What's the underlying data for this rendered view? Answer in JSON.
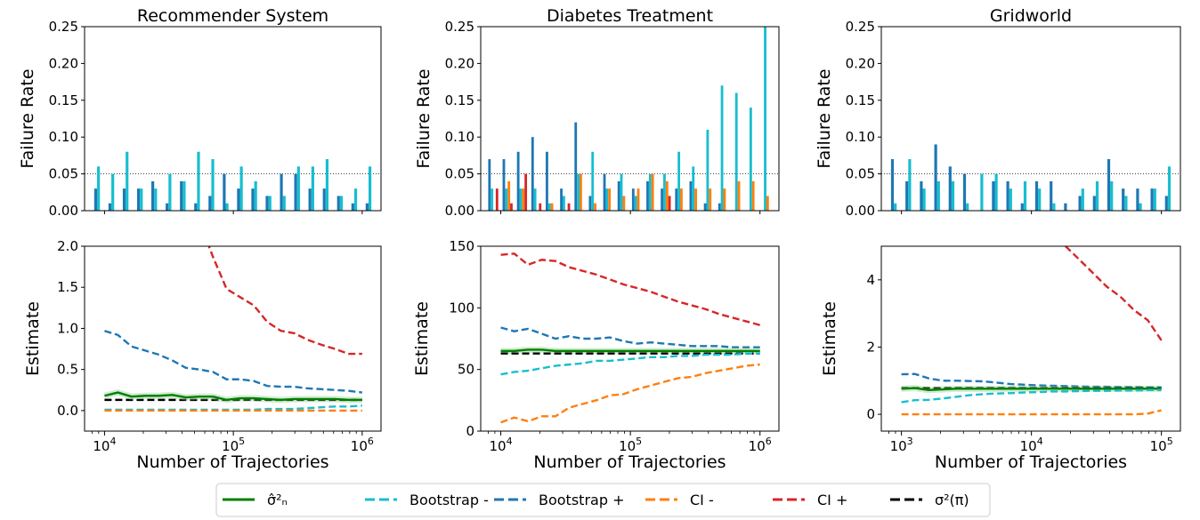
{
  "colors": {
    "sigma_hat": "#008000",
    "bootstrap_minus": "#17becf",
    "bootstrap_plus": "#1f77b4",
    "ci_minus": "#ff7f0e",
    "ci_plus": "#d62728",
    "sigma_true": "#000000"
  },
  "legend": {
    "placement": "bottom-center",
    "items": [
      {
        "key": "sigma_hat",
        "label": "σ̂²ₙ",
        "dash": false
      },
      {
        "key": "bootstrap_minus",
        "label": "Bootstrap -",
        "dash": true
      },
      {
        "key": "bootstrap_plus",
        "label": "Bootstrap +",
        "dash": true
      },
      {
        "key": "ci_minus",
        "label": "CI -",
        "dash": true
      },
      {
        "key": "ci_plus",
        "label": "CI +",
        "dash": true
      },
      {
        "key": "sigma_true",
        "label": "σ²(π)",
        "dash": true
      }
    ]
  },
  "chart_data": [
    {
      "type": "bar",
      "title": "Recommender System",
      "ylabel": "Failure Rate",
      "ylim": [
        0,
        0.25
      ],
      "yticks": [
        "0.00",
        "0.05",
        "0.10",
        "0.15",
        "0.20",
        "0.25"
      ],
      "reference_line": 0.05,
      "series": [
        {
          "key": "bootstrap_plus",
          "values": [
            0.03,
            0.01,
            0.03,
            0.03,
            0.04,
            0.01,
            0.04,
            0.01,
            0.02,
            0.05,
            0.03,
            0.03,
            0.02,
            0.05,
            0.05,
            0.03,
            0.03,
            0.02,
            0.01,
            0.01
          ]
        },
        {
          "key": "bootstrap_minus",
          "values": [
            0.06,
            0.05,
            0.08,
            0.03,
            0.03,
            0.05,
            0.04,
            0.08,
            0.07,
            0.01,
            0.06,
            0.04,
            0.02,
            0.02,
            0.06,
            0.06,
            0.07,
            0.02,
            0.03,
            0.06
          ]
        }
      ]
    },
    {
      "type": "bar",
      "title": "Diabetes Treatment",
      "ylabel": "Failure Rate",
      "ylim": [
        0,
        0.25
      ],
      "yticks": [
        "0.00",
        "0.05",
        "0.10",
        "0.15",
        "0.20",
        "0.25"
      ],
      "reference_line": 0.05,
      "series": [
        {
          "key": "bootstrap_plus",
          "values": [
            0.07,
            0.07,
            0.08,
            0.1,
            0.08,
            0.03,
            0.12,
            0.02,
            0.05,
            0.04,
            0.03,
            0.04,
            0.03,
            0.03,
            0.04,
            0.01,
            0.01,
            0.0,
            0.0,
            0.0
          ]
        },
        {
          "key": "bootstrap_minus",
          "values": [
            0.03,
            0.03,
            0.03,
            0.03,
            0.01,
            0.02,
            0.05,
            0.08,
            0.03,
            0.05,
            0.02,
            0.05,
            0.05,
            0.08,
            0.06,
            0.11,
            0.17,
            0.16,
            0.14,
            0.25
          ]
        },
        {
          "key": "ci_minus",
          "values": [
            0.0,
            0.04,
            0.03,
            0.0,
            0.01,
            0.0,
            0.05,
            0.01,
            0.03,
            0.02,
            0.03,
            0.05,
            0.04,
            0.03,
            0.03,
            0.03,
            0.03,
            0.04,
            0.04,
            0.02
          ]
        },
        {
          "key": "ci_plus",
          "values": [
            0.03,
            0.01,
            0.05,
            0.01,
            0.0,
            0.01,
            0.0,
            0.0,
            0.0,
            0.0,
            0.0,
            0.0,
            0.02,
            0.0,
            0.0,
            0.0,
            0.0,
            0.0,
            0.0,
            0.0
          ]
        }
      ]
    },
    {
      "type": "bar",
      "title": "Gridworld",
      "ylabel": "Failure Rate",
      "ylim": [
        0,
        0.25
      ],
      "yticks": [
        "0.00",
        "0.05",
        "0.10",
        "0.15",
        "0.20",
        "0.25"
      ],
      "reference_line": 0.05,
      "series": [
        {
          "key": "bootstrap_plus",
          "values": [
            0.07,
            0.04,
            0.04,
            0.09,
            0.06,
            0.05,
            0.0,
            0.04,
            0.04,
            0.01,
            0.04,
            0.04,
            0.01,
            0.02,
            0.02,
            0.07,
            0.03,
            0.03,
            0.03,
            0.02
          ]
        },
        {
          "key": "bootstrap_minus",
          "values": [
            0.01,
            0.07,
            0.03,
            0.04,
            0.04,
            0.01,
            0.05,
            0.05,
            0.03,
            0.04,
            0.03,
            0.01,
            0.0,
            0.03,
            0.04,
            0.04,
            0.02,
            0.01,
            0.03,
            0.06
          ]
        }
      ]
    },
    {
      "type": "line",
      "xlabel": "Number of Trajectories",
      "ylabel": "Estimate",
      "xscale": "log",
      "xlim": [
        7000,
        1400000
      ],
      "ylim": [
        -0.25,
        2.0
      ],
      "xticks": [
        {
          "v": 10000,
          "b": "10",
          "e": "4"
        },
        {
          "v": 100000,
          "b": "10",
          "e": "5"
        },
        {
          "v": 1000000,
          "b": "10",
          "e": "6"
        }
      ],
      "yticks": [
        "0.0",
        "0.5",
        "1.0",
        "1.5",
        "2.0"
      ],
      "x": [
        10000,
        12700,
        16200,
        20700,
        26400,
        33600,
        42800,
        54600,
        69500,
        88600,
        113000,
        144000,
        183000,
        234000,
        298000,
        379000,
        483000,
        616000,
        785000,
        1000000
      ],
      "series": [
        {
          "key": "ci_plus",
          "values": [
            null,
            null,
            null,
            null,
            null,
            null,
            null,
            2.3,
            1.87,
            1.48,
            1.38,
            1.28,
            1.08,
            0.97,
            0.94,
            0.86,
            0.8,
            0.75,
            0.69,
            0.69
          ]
        },
        {
          "key": "bootstrap_plus",
          "values": [
            0.97,
            0.92,
            0.78,
            0.73,
            0.68,
            0.61,
            0.52,
            0.5,
            0.47,
            0.38,
            0.38,
            0.36,
            0.3,
            0.29,
            0.29,
            0.27,
            0.26,
            0.25,
            0.24,
            0.22
          ]
        },
        {
          "key": "bootstrap_minus",
          "values": [
            0.01,
            0.01,
            0.01,
            0.01,
            0.01,
            0.01,
            0.01,
            0.01,
            0.01,
            0.01,
            0.01,
            0.01,
            0.02,
            0.02,
            0.02,
            0.03,
            0.04,
            0.05,
            0.05,
            0.06
          ]
        },
        {
          "key": "ci_minus",
          "values": [
            0.0,
            0.0,
            0.0,
            0.0,
            0.0,
            0.0,
            0.0,
            0.0,
            0.0,
            0.0,
            0.0,
            0.0,
            0.0,
            0.0,
            0.0,
            0.0,
            0.0,
            0.0,
            0.0,
            0.0
          ]
        },
        {
          "key": "sigma_true",
          "values": [
            0.13,
            0.13,
            0.13,
            0.13,
            0.13,
            0.13,
            0.13,
            0.13,
            0.13,
            0.13,
            0.13,
            0.13,
            0.13,
            0.13,
            0.13,
            0.13,
            0.13,
            0.13,
            0.13,
            0.13
          ]
        },
        {
          "key": "sigma_hat",
          "values": [
            0.18,
            0.22,
            0.17,
            0.18,
            0.18,
            0.19,
            0.16,
            0.17,
            0.17,
            0.13,
            0.15,
            0.15,
            0.14,
            0.13,
            0.14,
            0.14,
            0.14,
            0.14,
            0.13,
            0.13
          ]
        }
      ]
    },
    {
      "type": "line",
      "xlabel": "Number of Trajectories",
      "ylabel": "Estimate",
      "xscale": "log",
      "xlim": [
        7000,
        1400000
      ],
      "ylim": [
        0,
        150
      ],
      "xticks": [
        {
          "v": 10000,
          "b": "10",
          "e": "4"
        },
        {
          "v": 100000,
          "b": "10",
          "e": "5"
        },
        {
          "v": 1000000,
          "b": "10",
          "e": "6"
        }
      ],
      "yticks": [
        "0",
        "50",
        "100",
        "150"
      ],
      "x": [
        10000,
        12700,
        16200,
        20700,
        26400,
        33600,
        42800,
        54600,
        69500,
        88600,
        113000,
        144000,
        183000,
        234000,
        298000,
        379000,
        483000,
        616000,
        785000,
        1000000
      ],
      "series": [
        {
          "key": "ci_plus",
          "values": [
            143,
            144,
            135,
            139,
            138,
            133,
            130,
            127,
            123,
            119,
            116,
            113,
            109,
            105,
            102,
            99,
            95,
            92,
            89,
            86
          ]
        },
        {
          "key": "bootstrap_plus",
          "values": [
            84,
            81,
            83,
            79,
            75,
            77,
            75,
            75,
            76,
            73,
            71,
            72,
            71,
            70,
            69,
            69,
            69,
            68,
            68,
            68
          ]
        },
        {
          "key": "sigma_hat",
          "values": [
            65,
            65,
            66,
            66,
            65,
            65,
            65,
            65,
            65,
            65,
            65,
            65,
            65,
            65,
            65,
            65,
            65,
            65,
            65,
            65
          ]
        },
        {
          "key": "sigma_true",
          "values": [
            63,
            63,
            63,
            63,
            63,
            63,
            63,
            63,
            63,
            63,
            63,
            63,
            63,
            63,
            63,
            63,
            63,
            63,
            63,
            63
          ]
        },
        {
          "key": "bootstrap_minus",
          "values": [
            46,
            48,
            49,
            51,
            53,
            54,
            55,
            57,
            57,
            58,
            59,
            60,
            60,
            61,
            61,
            62,
            62,
            62,
            63,
            63
          ]
        },
        {
          "key": "ci_minus",
          "values": [
            7,
            11,
            8,
            12,
            12,
            19,
            22,
            25,
            29,
            30,
            34,
            37,
            40,
            43,
            44,
            47,
            49,
            51,
            53,
            54
          ]
        }
      ]
    },
    {
      "type": "line",
      "xlabel": "Number of Trajectories",
      "ylabel": "Estimate",
      "xscale": "log",
      "xlim": [
        700,
        140000
      ],
      "ylim": [
        -0.5,
        5.0
      ],
      "xticks": [
        {
          "v": 1000,
          "b": "10",
          "e": "3"
        },
        {
          "v": 10000,
          "b": "10",
          "e": "4"
        },
        {
          "v": 100000,
          "b": "10",
          "e": "5"
        }
      ],
      "yticks": [
        "0",
        "2",
        "4"
      ],
      "x": [
        1000,
        1270,
        1620,
        2070,
        2640,
        3360,
        4280,
        5460,
        6950,
        8860,
        11300,
        14400,
        18300,
        23400,
        29800,
        37900,
        48300,
        61600,
        78500,
        100000
      ],
      "series": [
        {
          "key": "ci_plus",
          "values": [
            null,
            null,
            null,
            null,
            null,
            null,
            null,
            null,
            null,
            null,
            null,
            null,
            5.0,
            4.6,
            4.2,
            3.8,
            3.5,
            3.1,
            2.8,
            2.2
          ]
        },
        {
          "key": "bootstrap_plus",
          "values": [
            1.19,
            1.2,
            1.07,
            1.0,
            1.0,
            0.99,
            0.98,
            0.94,
            0.9,
            0.88,
            0.86,
            0.85,
            0.84,
            0.83,
            0.82,
            0.82,
            0.81,
            0.81,
            0.8,
            0.8
          ]
        },
        {
          "key": "sigma_true",
          "values": [
            0.78,
            0.78,
            0.78,
            0.78,
            0.78,
            0.78,
            0.78,
            0.78,
            0.78,
            0.78,
            0.78,
            0.78,
            0.78,
            0.78,
            0.78,
            0.78,
            0.78,
            0.78,
            0.78,
            0.78
          ]
        },
        {
          "key": "sigma_hat",
          "values": [
            0.76,
            0.78,
            0.72,
            0.74,
            0.76,
            0.76,
            0.76,
            0.76,
            0.76,
            0.76,
            0.76,
            0.76,
            0.76,
            0.76,
            0.76,
            0.76,
            0.76,
            0.76,
            0.76,
            0.76
          ]
        },
        {
          "key": "bootstrap_minus",
          "values": [
            0.36,
            0.42,
            0.43,
            0.47,
            0.52,
            0.57,
            0.6,
            0.62,
            0.63,
            0.65,
            0.66,
            0.68,
            0.68,
            0.69,
            0.7,
            0.7,
            0.71,
            0.71,
            0.72,
            0.72
          ]
        },
        {
          "key": "ci_minus",
          "values": [
            0.0,
            0.0,
            0.0,
            0.0,
            0.0,
            0.0,
            0.0,
            0.0,
            0.0,
            0.0,
            0.0,
            0.0,
            0.0,
            0.0,
            0.0,
            0.0,
            0.0,
            0.0,
            0.02,
            0.12
          ]
        }
      ]
    }
  ]
}
